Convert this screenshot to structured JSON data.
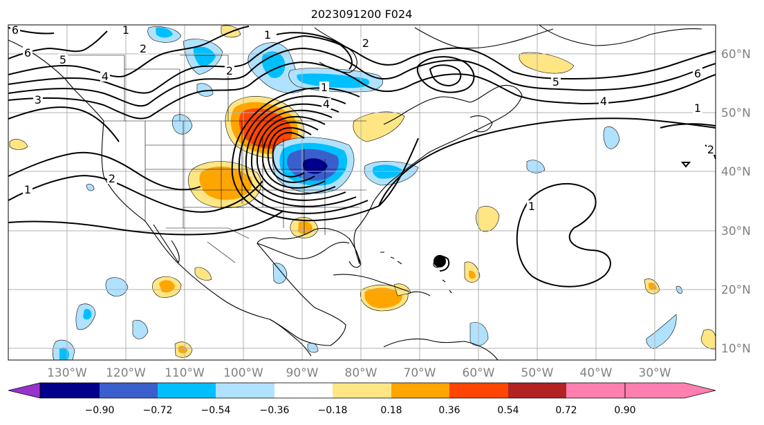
{
  "title": "2023091200 F024",
  "map": {
    "lon_labels": [
      "130°W",
      "120°W",
      "110°W",
      "100°W",
      "90°W",
      "80°W",
      "70°W",
      "60°W",
      "50°W",
      "40°W",
      "30°W"
    ],
    "lat_labels": [
      "60°N",
      "50°N",
      "40°N",
      "30°N",
      "20°N",
      "10°N"
    ],
    "contour_labels": [
      "6",
      "6",
      "5",
      "4",
      "3",
      "2",
      "1",
      "1",
      "2",
      "1",
      "2",
      "4",
      "5",
      "6",
      "4",
      "1",
      "2",
      "1",
      "1",
      "2"
    ]
  },
  "colorbar": {
    "ticks": [
      "−0.90",
      "−0.72",
      "−0.54",
      "−0.36",
      "−0.18",
      "0.18",
      "0.36",
      "0.54",
      "0.72",
      "0.90"
    ],
    "colors": [
      "#9932cc",
      "#00008b",
      "#3a5fcd",
      "#00bfff",
      "#b0e2ff",
      "#ffffff",
      "#ffe685",
      "#ffa500",
      "#ff4500",
      "#b22222",
      "#ff7fb0"
    ]
  }
}
